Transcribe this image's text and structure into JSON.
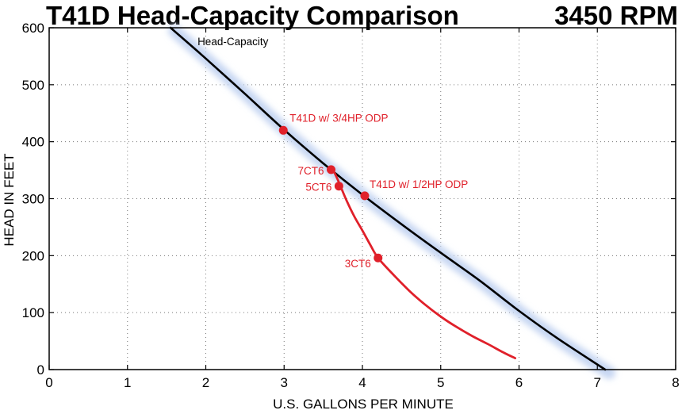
{
  "chart_data": {
    "type": "line",
    "title": "T41D Head-Capacity Comparison",
    "title_right": "3450 RPM",
    "xlabel": "U.S. GALLONS PER  MINUTE",
    "ylabel": "HEAD IN FEET",
    "xlim": [
      0,
      8
    ],
    "ylim": [
      0,
      600
    ],
    "x_ticks": [
      0,
      1,
      2,
      3,
      4,
      5,
      6,
      7,
      8
    ],
    "y_ticks": [
      0,
      100,
      200,
      300,
      400,
      500,
      600
    ],
    "grid": true,
    "series": [
      {
        "name": "Head-Capacity",
        "color": "#000000",
        "glow": "#c6d6f2",
        "x": [
          1.55,
          2.0,
          2.5,
          3.0,
          3.5,
          4.0,
          4.5,
          5.0,
          5.5,
          6.0,
          6.5,
          7.1
        ],
        "y": [
          600,
          546,
          484,
          421,
          362,
          307,
          255,
          205,
          156,
          103,
          54,
          0
        ]
      },
      {
        "name": "",
        "color": "#e0202a",
        "x": [
          3.62,
          3.68,
          3.72,
          3.8,
          3.9,
          4.0,
          4.1,
          4.2,
          4.4,
          4.6,
          4.8,
          5.0,
          5.2,
          5.4,
          5.6,
          5.8,
          5.95
        ],
        "y": [
          352,
          335,
          322,
          296,
          268,
          244,
          219,
          196,
          166,
          138,
          114,
          93,
          75,
          59,
          45,
          30,
          20
        ]
      }
    ],
    "points": [
      {
        "label": "T41D w/ 3/4HP ODP",
        "x": 2.99,
        "y": 420,
        "color": "#e0202a"
      },
      {
        "label": "7CT6",
        "x": 3.6,
        "y": 351,
        "color": "#e0202a"
      },
      {
        "label": "5CT6",
        "x": 3.7,
        "y": 322,
        "color": "#e0202a"
      },
      {
        "label": "T41D w/ 1/2HP ODP",
        "x": 4.03,
        "y": 305,
        "color": "#e0202a"
      },
      {
        "label": "3CT6",
        "x": 4.2,
        "y": 196,
        "color": "#e0202a"
      }
    ]
  }
}
